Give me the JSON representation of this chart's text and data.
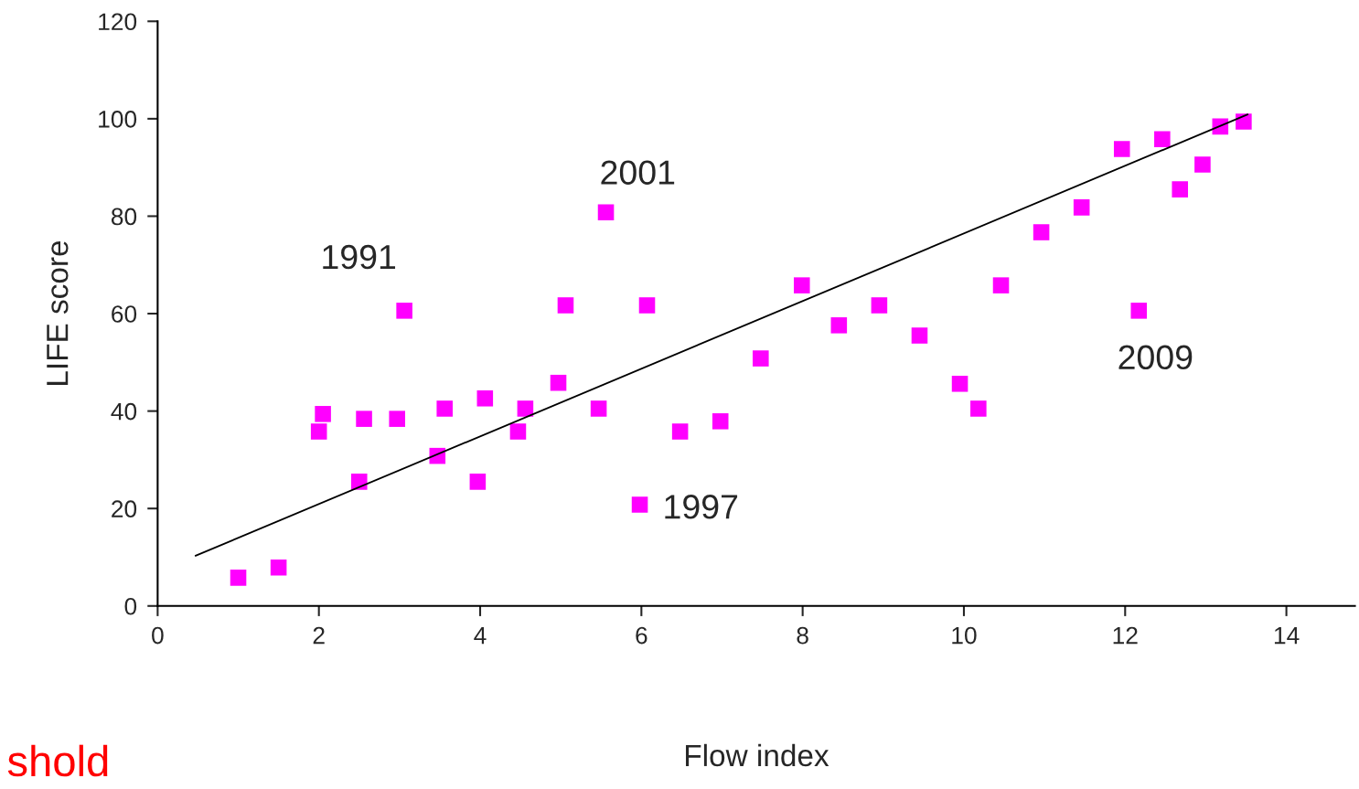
{
  "chart_data": {
    "type": "scatter",
    "xlabel": "Flow index",
    "ylabel": "LIFE score",
    "xlim": [
      0,
      14.85
    ],
    "ylim": [
      0,
      120
    ],
    "xticks": [
      0,
      2,
      4,
      6,
      8,
      10,
      12,
      14
    ],
    "yticks": [
      0,
      20,
      40,
      60,
      80,
      100,
      120
    ],
    "grid": false,
    "series": [
      {
        "color": "#ff00ff",
        "marker": "square",
        "x": [
          1.0,
          1.5,
          2.0,
          2.05,
          2.5,
          2.56,
          2.97,
          3.06,
          3.47,
          3.56,
          3.97,
          4.06,
          4.47,
          4.56,
          4.97,
          5.06,
          5.47,
          5.56,
          5.98,
          6.07,
          6.48,
          6.98,
          7.48,
          7.99,
          8.45,
          8.95,
          9.45,
          9.95,
          10.18,
          10.46,
          10.96,
          11.46,
          11.96,
          12.17,
          12.46,
          12.68,
          12.96,
          13.18,
          13.47
        ],
        "values": [
          5.8,
          7.9,
          35.8,
          39.4,
          25.5,
          38.4,
          38.4,
          60.6,
          30.8,
          40.5,
          25.5,
          42.6,
          35.8,
          40.5,
          45.8,
          61.7,
          40.5,
          80.8,
          20.8,
          61.7,
          35.8,
          37.9,
          50.8,
          65.8,
          57.6,
          61.7,
          55.5,
          45.6,
          40.5,
          65.8,
          76.7,
          81.8,
          93.8,
          60.6,
          95.8,
          85.5,
          90.6,
          98.4,
          99.4
        ]
      },
      {
        "type": "line",
        "color": "#000000",
        "x": [
          0.47,
          13.52
        ],
        "values": [
          10.3,
          100.9
        ]
      }
    ],
    "annotations": [
      {
        "text": "1991",
        "x": 3.06,
        "y": 60.6
      },
      {
        "text": "2001",
        "x": 5.56,
        "y": 80.8
      },
      {
        "text": "1997",
        "x": 5.98,
        "y": 20.8
      },
      {
        "text": "2009",
        "x": 12.17,
        "y": 60.6
      },
      "shold"
    ]
  }
}
